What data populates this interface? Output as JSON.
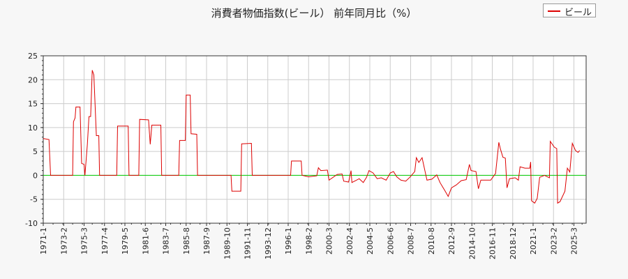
{
  "chart_data": {
    "type": "line",
    "title": "消費者物価指数(ビール） 前年同月比（%）",
    "legend": {
      "position": "top-right",
      "entries": [
        "ビール"
      ]
    },
    "xlabel": "",
    "ylabel": "",
    "ylim": [
      -10,
      25
    ],
    "yticks": [
      -10,
      -5,
      0,
      5,
      10,
      15,
      20,
      25
    ],
    "x_tick_labels": [
      "1971-1",
      "1973-2",
      "1975-3",
      "1977-4",
      "1979-5",
      "1981-6",
      "1983-7",
      "1985-8",
      "1987-9",
      "1989-10",
      "1991-11",
      "1993-12",
      "1996-1",
      "1998-2",
      "2000-3",
      "2002-4",
      "2004-5",
      "2006-6",
      "2008-7",
      "2010-8",
      "2012-9",
      "2014-10",
      "2016-11",
      "2018-12",
      "2021-1",
      "2023-2",
      "2025-3"
    ],
    "grid": true,
    "zero_line": true,
    "colors": {
      "series": "#dd0000",
      "zero": "#00cc00",
      "grid": "#cccccc"
    },
    "series": [
      {
        "name": "ビール",
        "points": [
          [
            "1971-01",
            7.7
          ],
          [
            "1971-08",
            7.5
          ],
          [
            "1971-10",
            0
          ],
          [
            "1974-01",
            0
          ],
          [
            "1974-02",
            11.2
          ],
          [
            "1974-04",
            12.0
          ],
          [
            "1974-05",
            14.3
          ],
          [
            "1974-10",
            14.3
          ],
          [
            "1974-12",
            2.5
          ],
          [
            "1975-03",
            2.3
          ],
          [
            "1975-04",
            0
          ],
          [
            "1975-07",
            6.5
          ],
          [
            "1975-09",
            12.3
          ],
          [
            "1975-11",
            12.3
          ],
          [
            "1976-01",
            22.0
          ],
          [
            "1976-03",
            21.0
          ],
          [
            "1976-06",
            8.3
          ],
          [
            "1976-09",
            8.3
          ],
          [
            "1976-10",
            0
          ],
          [
            "1978-07",
            0
          ],
          [
            "1978-08",
            10.3
          ],
          [
            "1979-09",
            10.3
          ],
          [
            "1979-10",
            0
          ],
          [
            "1980-10",
            0
          ],
          [
            "1980-11",
            11.7
          ],
          [
            "1981-10",
            11.6
          ],
          [
            "1981-12",
            6.5
          ],
          [
            "1982-02",
            10.5
          ],
          [
            "1983-01",
            10.5
          ],
          [
            "1983-02",
            0
          ],
          [
            "1984-11",
            0
          ],
          [
            "1984-12",
            7.3
          ],
          [
            "1985-07",
            7.3
          ],
          [
            "1985-08",
            16.8
          ],
          [
            "1986-01",
            16.8
          ],
          [
            "1986-02",
            8.7
          ],
          [
            "1986-09",
            8.6
          ],
          [
            "1986-10",
            0
          ],
          [
            "1990-03",
            0
          ],
          [
            "1990-04",
            -3.3
          ],
          [
            "1991-03",
            -3.3
          ],
          [
            "1991-04",
            6.6
          ],
          [
            "1992-04",
            6.7
          ],
          [
            "1992-05",
            0
          ],
          [
            "1996-04",
            0
          ],
          [
            "1996-05",
            3.0
          ],
          [
            "1997-05",
            3.0
          ],
          [
            "1997-06",
            0
          ],
          [
            "1998-02",
            -0.3
          ],
          [
            "1998-12",
            -0.1
          ],
          [
            "1999-02",
            1.6
          ],
          [
            "1999-05",
            1.0
          ],
          [
            "2000-01",
            1.1
          ],
          [
            "2000-03",
            -1.0
          ],
          [
            "2001-01",
            0.2
          ],
          [
            "2001-07",
            0.3
          ],
          [
            "2001-09",
            -1.2
          ],
          [
            "2002-03",
            -1.4
          ],
          [
            "2002-06",
            1.0
          ],
          [
            "2002-07",
            -1.5
          ],
          [
            "2003-04",
            -0.7
          ],
          [
            "2003-09",
            -1.5
          ],
          [
            "2004-01",
            -0.4
          ],
          [
            "2004-04",
            1.0
          ],
          [
            "2004-09",
            0.5
          ],
          [
            "2005-02",
            -0.7
          ],
          [
            "2005-07",
            -0.5
          ],
          [
            "2006-01",
            -1.0
          ],
          [
            "2006-06",
            0.5
          ],
          [
            "2006-10",
            0.8
          ],
          [
            "2007-02",
            -0.3
          ],
          [
            "2007-07",
            -1.0
          ],
          [
            "2008-01",
            -1.2
          ],
          [
            "2008-06",
            -0.4
          ],
          [
            "2008-12",
            0.8
          ],
          [
            "2009-02",
            3.7
          ],
          [
            "2009-05",
            2.7
          ],
          [
            "2009-09",
            3.7
          ],
          [
            "2010-03",
            -1.0
          ],
          [
            "2010-09",
            -0.8
          ],
          [
            "2011-03",
            0.1
          ],
          [
            "2011-07",
            -1.5
          ],
          [
            "2012-01",
            -3.2
          ],
          [
            "2012-05",
            -4.4
          ],
          [
            "2012-09",
            -2.6
          ],
          [
            "2013-03",
            -2.0
          ],
          [
            "2013-09",
            -1.1
          ],
          [
            "2014-03",
            -0.9
          ],
          [
            "2014-07",
            2.3
          ],
          [
            "2014-09",
            1.0
          ],
          [
            "2015-03",
            0.8
          ],
          [
            "2015-06",
            -2.8
          ],
          [
            "2015-09",
            -1.0
          ],
          [
            "2016-03",
            -1.0
          ],
          [
            "2016-09",
            -1.0
          ],
          [
            "2017-03",
            0.4
          ],
          [
            "2017-07",
            6.9
          ],
          [
            "2017-09",
            5.5
          ],
          [
            "2017-12",
            3.8
          ],
          [
            "2018-03",
            3.6
          ],
          [
            "2018-05",
            -2.6
          ],
          [
            "2018-08",
            -0.7
          ],
          [
            "2019-03",
            -0.5
          ],
          [
            "2019-07",
            -1.0
          ],
          [
            "2019-09",
            1.8
          ],
          [
            "2020-03",
            1.5
          ],
          [
            "2020-09",
            1.5
          ],
          [
            "2020-10",
            2.8
          ],
          [
            "2020-11",
            -5.3
          ],
          [
            "2021-03",
            -5.8
          ],
          [
            "2021-06",
            -4.8
          ],
          [
            "2021-09",
            -0.4
          ],
          [
            "2022-03",
            0.0
          ],
          [
            "2022-09",
            -0.5
          ],
          [
            "2022-10",
            7.1
          ],
          [
            "2023-03",
            5.9
          ],
          [
            "2023-06",
            5.6
          ],
          [
            "2023-07",
            -5.8
          ],
          [
            "2023-10",
            -5.5
          ],
          [
            "2024-04",
            -3.3
          ],
          [
            "2024-07",
            1.5
          ],
          [
            "2024-10",
            0.7
          ],
          [
            "2025-01",
            6.7
          ],
          [
            "2025-05",
            5.2
          ],
          [
            "2025-08",
            4.8
          ],
          [
            "2025-10",
            5.2
          ]
        ]
      }
    ]
  }
}
